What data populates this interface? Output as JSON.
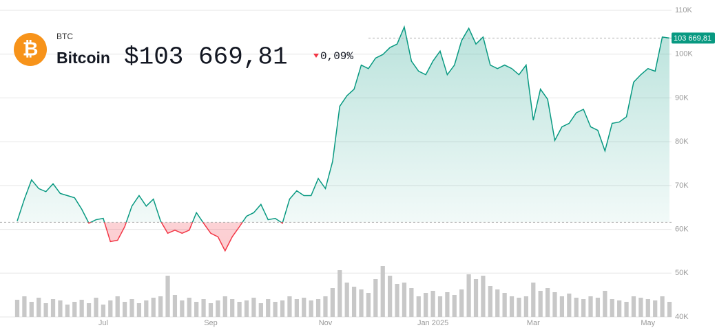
{
  "chart_data": {
    "type": "line",
    "ticker": "BTC",
    "name": "Bitcoin",
    "logo_symbol": "₿",
    "price_label": "$103 669,81",
    "change_label": "0,09%",
    "last_value_label": "103 669,81",
    "baseline": 61600,
    "categories": [
      null,
      null,
      null,
      null,
      null,
      null,
      null,
      null,
      null,
      null,
      null,
      null,
      "Jul",
      null,
      null,
      null,
      null,
      null,
      null,
      null,
      null,
      null,
      null,
      null,
      null,
      null,
      null,
      "Sep",
      null,
      null,
      null,
      null,
      null,
      null,
      null,
      null,
      null,
      null,
      null,
      null,
      null,
      null,
      null,
      "Nov",
      null,
      null,
      null,
      null,
      null,
      null,
      null,
      null,
      null,
      null,
      null,
      null,
      null,
      null,
      "Jan 2025",
      null,
      null,
      null,
      null,
      null,
      null,
      null,
      null,
      null,
      null,
      null,
      null,
      null,
      "Mar",
      null,
      null,
      null,
      null,
      null,
      null,
      null,
      null,
      null,
      null,
      null,
      null,
      null,
      null,
      null,
      "May",
      null,
      null,
      null
    ],
    "series": [
      {
        "name": "Bitcoin",
        "color": "#089981",
        "color_below": "#f23645",
        "values": [
          61900,
          66900,
          71300,
          69300,
          68600,
          70400,
          68200,
          67700,
          67200,
          64600,
          61400,
          62200,
          62500,
          57200,
          57500,
          60600,
          65300,
          67700,
          65300,
          66900,
          61900,
          59100,
          59800,
          59100,
          59800,
          63800,
          61400,
          59100,
          58300,
          55100,
          58300,
          60600,
          63000,
          63800,
          65700,
          62200,
          62500,
          61400,
          66900,
          68800,
          67700,
          67700,
          71600,
          69300,
          75500,
          88100,
          90500,
          92000,
          97500,
          96700,
          99100,
          99900,
          101500,
          102300,
          106200,
          98400,
          96100,
          95300,
          98400,
          100700,
          95300,
          97500,
          103100,
          105900,
          102300,
          103900,
          97500,
          96700,
          97500,
          96700,
          95300,
          97500,
          84900,
          92000,
          89700,
          80300,
          83400,
          84200,
          86600,
          87400,
          83400,
          82600,
          77900,
          84200,
          84500,
          85700,
          93600,
          95300,
          96700,
          96100,
          103900,
          103669.81
        ]
      },
      {
        "name": "Volume",
        "color": "#c8c8c8",
        "values": [
          25,
          30,
          22,
          28,
          20,
          26,
          24,
          18,
          22,
          25,
          20,
          28,
          18,
          24,
          30,
          22,
          26,
          20,
          24,
          28,
          30,
          60,
          32,
          24,
          28,
          22,
          26,
          20,
          24,
          30,
          26,
          22,
          24,
          28,
          20,
          26,
          22,
          24,
          30,
          26,
          28,
          24,
          26,
          30,
          42,
          68,
          50,
          44,
          40,
          35,
          55,
          74,
          60,
          48,
          50,
          42,
          30,
          35,
          38,
          30,
          36,
          32,
          40,
          62,
          55,
          60,
          45,
          40,
          35,
          30,
          28,
          30,
          50,
          38,
          42,
          36,
          30,
          34,
          28,
          26,
          30,
          28,
          38,
          26,
          24,
          22,
          30,
          28,
          26,
          24,
          30,
          22
        ]
      }
    ],
    "ylim": [
      40000,
      110000
    ],
    "yticks": [
      {
        "value": 40000,
        "label": "40K"
      },
      {
        "value": 50000,
        "label": "50K"
      },
      {
        "value": 60000,
        "label": "60K"
      },
      {
        "value": 70000,
        "label": "70K"
      },
      {
        "value": 80000,
        "label": "80K"
      },
      {
        "value": 90000,
        "label": "90K"
      },
      {
        "value": 100000,
        "label": "100K"
      },
      {
        "value": 110000,
        "label": "110K"
      }
    ],
    "grid": true
  }
}
